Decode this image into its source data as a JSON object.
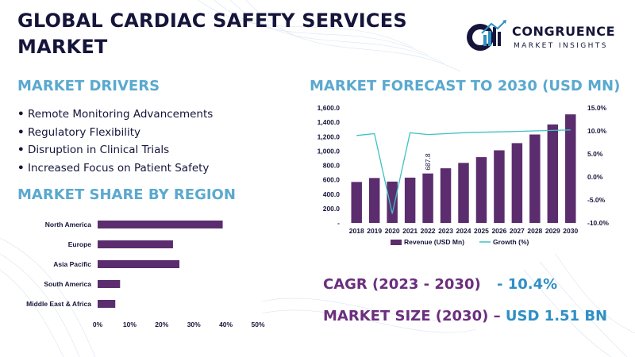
{
  "header": {
    "title_line1": "GLOBAL CARDIAC SAFETY SERVICES",
    "title_line2": "MARKET"
  },
  "logo": {
    "name": "CONGRUENCE",
    "tagline": "MARKET INSIGHTS",
    "colors": {
      "dark": "#15153b",
      "accent": "#2f8fc4"
    }
  },
  "drivers": {
    "title": "MARKET DRIVERS",
    "items": [
      "Remote Monitoring Advancements",
      "Regulatory Flexibility",
      "Disruption in Clinical Trials",
      "Increased Focus on Patient Safety"
    ]
  },
  "share_section": {
    "title": "MARKET SHARE BY REGION"
  },
  "forecast_section": {
    "title": "MARKET FORECAST TO 2030 (USD MN)"
  },
  "stats": {
    "cagr_label": "CAGR (2023 - 2030)",
    "cagr_value": "- 10.4%",
    "size_label": "MARKET SIZE (2030) –",
    "size_value": "USD 1.51 BN"
  },
  "colors": {
    "bar": "#5b2d6e",
    "line": "#3ec2c2",
    "section_title": "#5aa9cf",
    "stat_label": "#6b2f7e",
    "stat_value": "#2f8fc4"
  },
  "chart_data": [
    {
      "type": "bar",
      "orientation": "horizontal",
      "categories": [
        "North America",
        "Europe",
        "Asia Pacific",
        "South America",
        "Middle East & Africa"
      ],
      "values": [
        39,
        23.5,
        25.5,
        7,
        5.5
      ],
      "xlim": [
        0,
        50
      ],
      "x_ticks": [
        "0%",
        "10%",
        "20%",
        "30%",
        "40%",
        "50%"
      ],
      "grid": false
    },
    {
      "type": "bar+line",
      "categories": [
        "2018",
        "2019",
        "2020",
        "2021",
        "2022",
        "2023",
        "2024",
        "2025",
        "2026",
        "2027",
        "2028",
        "2029",
        "2030"
      ],
      "series": [
        {
          "name": "Revenue (USD Mn)",
          "type": "bar",
          "axis": "left",
          "values": [
            570,
            625,
            575,
            630,
            687.8,
            760,
            835,
            915,
            1010,
            1110,
            1230,
            1370,
            1510
          ]
        },
        {
          "name": "Growth (%)",
          "type": "line",
          "axis": "right",
          "values": [
            9.0,
            9.4,
            -8.0,
            9.6,
            9.2,
            9.4,
            9.6,
            9.7,
            9.8,
            9.9,
            10.0,
            10.1,
            10.2
          ]
        }
      ],
      "data_labels": [
        {
          "category": "2022",
          "text": "687.8"
        }
      ],
      "left_ticks": [
        "-",
        "200.0",
        "400.0",
        "600.0",
        "800.0",
        "1,000.0",
        "1,200.0",
        "1,400.0",
        "1,600.0"
      ],
      "ylim_left": [
        0,
        1600
      ],
      "right_ticks": [
        "-10.0%",
        "-5.0%",
        "0.0%",
        "5.0%",
        "10.0%",
        "15.0%"
      ],
      "ylim_right": [
        -10,
        15
      ],
      "legend_position": "bottom",
      "grid": false
    }
  ]
}
